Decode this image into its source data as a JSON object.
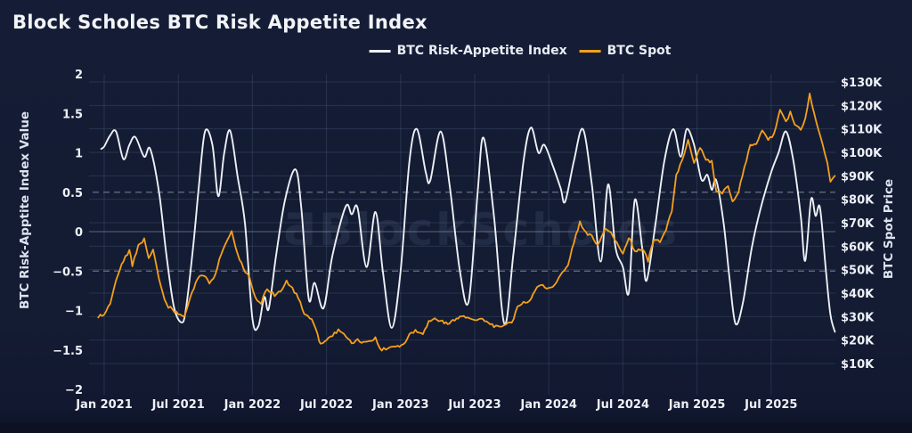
{
  "title": "Block Scholes BTC Risk Appetite Index",
  "watermark": {
    "logo": "Ƌ",
    "text": "BlockScholes"
  },
  "legend": [
    {
      "label": "BTC Risk-Appetite Index",
      "color": "#edf0f5"
    },
    {
      "label": "BTC Spot",
      "color": "#f5a01c"
    }
  ],
  "colors": {
    "background": "#141c33",
    "text": "#eef1f7",
    "grid": "rgba(110,130,170,0.22)",
    "dashed_reference": "rgba(172,180,194,0.55)",
    "zero_line": "rgba(150,160,180,0.45)",
    "index_line": "#edf0f5",
    "spot_line": "#f5a01c"
  },
  "chart_data": {
    "type": "line",
    "title": "Block Scholes BTC Risk Appetite Index",
    "legend_position": "top",
    "grid": true,
    "x_axis": {
      "ticks": [
        {
          "label": "Jan 2021",
          "year": 2021.0
        },
        {
          "label": "Jul 2021",
          "year": 2021.5
        },
        {
          "label": "Jan 2022",
          "year": 2022.0
        },
        {
          "label": "Jul 2022",
          "year": 2022.5
        },
        {
          "label": "Jan 2023",
          "year": 2023.0
        },
        {
          "label": "Jul 2023",
          "year": 2023.5
        },
        {
          "label": "Jan 2024",
          "year": 2024.0
        },
        {
          "label": "Jul 2024",
          "year": 2024.5
        },
        {
          "label": "Jan 2025",
          "year": 2025.0
        },
        {
          "label": "Jul 2025",
          "year": 2025.5
        }
      ],
      "range": [
        2020.9,
        2025.95
      ]
    },
    "left_axis": {
      "label": "BTC Risk-Apptite Index Value",
      "range": [
        -2,
        2
      ],
      "ticks": [
        {
          "label": "2",
          "value": 2
        },
        {
          "label": "1.5",
          "value": 1.5
        },
        {
          "label": "1",
          "value": 1
        },
        {
          "label": "0.5",
          "value": 0.5
        },
        {
          "label": "0",
          "value": 0
        },
        {
          "label": "−0.5",
          "value": -0.5
        },
        {
          "label": "−1",
          "value": -1
        },
        {
          "label": "−1.5",
          "value": -1.5
        },
        {
          "label": "−2",
          "value": -2
        }
      ],
      "reference_lines": {
        "dashed": [
          0.5,
          -0.5
        ],
        "solid": [
          0
        ]
      }
    },
    "right_axis": {
      "label": "BTC Spot Price",
      "unit": "USD thousands",
      "ticks": [
        {
          "label": "$130K",
          "value": 130
        },
        {
          "label": "$120K",
          "value": 120
        },
        {
          "label": "$110K",
          "value": 110
        },
        {
          "label": "$100K",
          "value": 100
        },
        {
          "label": "$90K",
          "value": 90
        },
        {
          "label": "$80K",
          "value": 80
        },
        {
          "label": "$70K",
          "value": 70
        },
        {
          "label": "$60K",
          "value": 60
        },
        {
          "label": "$50K",
          "value": 50
        },
        {
          "label": "$40K",
          "value": 40
        },
        {
          "label": "$30K",
          "value": 30
        },
        {
          "label": "$20K",
          "value": 20
        },
        {
          "label": "$10K",
          "value": 10
        }
      ]
    },
    "series": [
      {
        "name": "BTC Risk-Appetite Index",
        "axis": "left",
        "color": "#edf0f5",
        "style": "smooth",
        "points": [
          [
            2020.98,
            1.05
          ],
          [
            2021.0,
            1.08
          ],
          [
            2021.04,
            1.22
          ],
          [
            2021.08,
            1.27
          ],
          [
            2021.13,
            0.92
          ],
          [
            2021.17,
            1.1
          ],
          [
            2021.21,
            1.2
          ],
          [
            2021.27,
            0.95
          ],
          [
            2021.31,
            1.05
          ],
          [
            2021.37,
            0.5
          ],
          [
            2021.42,
            -0.3
          ],
          [
            2021.47,
            -0.95
          ],
          [
            2021.52,
            -1.15
          ],
          [
            2021.55,
            -1.0
          ],
          [
            2021.6,
            -0.2
          ],
          [
            2021.64,
            0.6
          ],
          [
            2021.68,
            1.27
          ],
          [
            2021.73,
            1.1
          ],
          [
            2021.77,
            0.45
          ],
          [
            2021.81,
            1.0
          ],
          [
            2021.85,
            1.28
          ],
          [
            2021.9,
            0.7
          ],
          [
            2021.95,
            0.1
          ],
          [
            2022.0,
            -1.1
          ],
          [
            2022.04,
            -1.2
          ],
          [
            2022.08,
            -0.83
          ],
          [
            2022.11,
            -0.98
          ],
          [
            2022.16,
            -0.3
          ],
          [
            2022.22,
            0.4
          ],
          [
            2022.29,
            0.79
          ],
          [
            2022.33,
            0.3
          ],
          [
            2022.38,
            -0.85
          ],
          [
            2022.42,
            -0.65
          ],
          [
            2022.48,
            -0.97
          ],
          [
            2022.54,
            -0.3
          ],
          [
            2022.63,
            0.32
          ],
          [
            2022.67,
            0.22
          ],
          [
            2022.71,
            0.3
          ],
          [
            2022.77,
            -0.45
          ],
          [
            2022.83,
            0.25
          ],
          [
            2022.88,
            -0.5
          ],
          [
            2022.94,
            -1.22
          ],
          [
            2023.0,
            -0.5
          ],
          [
            2023.06,
            0.9
          ],
          [
            2023.11,
            1.3
          ],
          [
            2023.17,
            0.75
          ],
          [
            2023.2,
            0.65
          ],
          [
            2023.27,
            1.27
          ],
          [
            2023.33,
            0.6
          ],
          [
            2023.4,
            -0.5
          ],
          [
            2023.46,
            -0.88
          ],
          [
            2023.52,
            0.5
          ],
          [
            2023.56,
            1.19
          ],
          [
            2023.63,
            0.2
          ],
          [
            2023.7,
            -1.17
          ],
          [
            2023.76,
            -0.3
          ],
          [
            2023.83,
            0.9
          ],
          [
            2023.88,
            1.32
          ],
          [
            2023.93,
            1.0
          ],
          [
            2023.97,
            1.1
          ],
          [
            2024.03,
            0.82
          ],
          [
            2024.08,
            0.55
          ],
          [
            2024.11,
            0.38
          ],
          [
            2024.17,
            0.9
          ],
          [
            2024.23,
            1.3
          ],
          [
            2024.29,
            0.6
          ],
          [
            2024.35,
            -0.38
          ],
          [
            2024.4,
            0.6
          ],
          [
            2024.45,
            -0.2
          ],
          [
            2024.5,
            -0.45
          ],
          [
            2024.54,
            -0.77
          ],
          [
            2024.58,
            0.4
          ],
          [
            2024.63,
            -0.2
          ],
          [
            2024.66,
            -0.62
          ],
          [
            2024.72,
            0.1
          ],
          [
            2024.78,
            0.9
          ],
          [
            2024.84,
            1.3
          ],
          [
            2024.89,
            0.95
          ],
          [
            2024.93,
            1.3
          ],
          [
            2024.98,
            1.1
          ],
          [
            2025.03,
            0.66
          ],
          [
            2025.07,
            0.72
          ],
          [
            2025.1,
            0.53
          ],
          [
            2025.13,
            0.65
          ],
          [
            2025.18,
            0.1
          ],
          [
            2025.22,
            -0.6
          ],
          [
            2025.26,
            -1.17
          ],
          [
            2025.31,
            -0.9
          ],
          [
            2025.37,
            -0.2
          ],
          [
            2025.43,
            0.3
          ],
          [
            2025.5,
            0.75
          ],
          [
            2025.55,
            1.0
          ],
          [
            2025.6,
            1.27
          ],
          [
            2025.65,
            0.9
          ],
          [
            2025.7,
            0.2
          ],
          [
            2025.73,
            -0.37
          ],
          [
            2025.77,
            0.41
          ],
          [
            2025.8,
            0.2
          ],
          [
            2025.83,
            0.3
          ],
          [
            2025.87,
            -0.5
          ],
          [
            2025.9,
            -1.05
          ],
          [
            2025.93,
            -1.27
          ]
        ]
      },
      {
        "name": "BTC Spot",
        "axis": "right",
        "color": "#f5a01c",
        "style": "noisy",
        "points": [
          [
            2020.96,
            30
          ],
          [
            2021.0,
            31
          ],
          [
            2021.04,
            36
          ],
          [
            2021.08,
            46
          ],
          [
            2021.13,
            54
          ],
          [
            2021.17,
            58
          ],
          [
            2021.19,
            52
          ],
          [
            2021.23,
            60
          ],
          [
            2021.27,
            63
          ],
          [
            2021.3,
            55
          ],
          [
            2021.33,
            58
          ],
          [
            2021.38,
            43
          ],
          [
            2021.42,
            35
          ],
          [
            2021.46,
            33
          ],
          [
            2021.5,
            31
          ],
          [
            2021.54,
            30
          ],
          [
            2021.58,
            38
          ],
          [
            2021.63,
            46
          ],
          [
            2021.67,
            48
          ],
          [
            2021.71,
            44
          ],
          [
            2021.75,
            48
          ],
          [
            2021.79,
            57
          ],
          [
            2021.83,
            63
          ],
          [
            2021.86,
            66
          ],
          [
            2021.9,
            57
          ],
          [
            2021.94,
            50
          ],
          [
            2021.98,
            47
          ],
          [
            2022.02,
            38
          ],
          [
            2022.06,
            36
          ],
          [
            2022.1,
            42
          ],
          [
            2022.15,
            39
          ],
          [
            2022.19,
            41
          ],
          [
            2022.23,
            45
          ],
          [
            2022.27,
            42
          ],
          [
            2022.31,
            38
          ],
          [
            2022.35,
            31
          ],
          [
            2022.4,
            29
          ],
          [
            2022.44,
            22
          ],
          [
            2022.46,
            18
          ],
          [
            2022.5,
            20
          ],
          [
            2022.54,
            22
          ],
          [
            2022.58,
            24
          ],
          [
            2022.63,
            22
          ],
          [
            2022.67,
            19
          ],
          [
            2022.71,
            20
          ],
          [
            2022.75,
            19
          ],
          [
            2022.79,
            19
          ],
          [
            2022.83,
            21
          ],
          [
            2022.86,
            16
          ],
          [
            2022.9,
            16
          ],
          [
            2022.94,
            17
          ],
          [
            2022.98,
            17
          ],
          [
            2023.02,
            18
          ],
          [
            2023.06,
            22
          ],
          [
            2023.1,
            24
          ],
          [
            2023.15,
            22
          ],
          [
            2023.19,
            28
          ],
          [
            2023.23,
            29
          ],
          [
            2023.27,
            28
          ],
          [
            2023.33,
            27
          ],
          [
            2023.4,
            30
          ],
          [
            2023.44,
            30
          ],
          [
            2023.48,
            29
          ],
          [
            2023.54,
            29
          ],
          [
            2023.58,
            28
          ],
          [
            2023.63,
            26
          ],
          [
            2023.67,
            26
          ],
          [
            2023.71,
            27
          ],
          [
            2023.75,
            27
          ],
          [
            2023.79,
            34
          ],
          [
            2023.83,
            36
          ],
          [
            2023.88,
            37
          ],
          [
            2023.92,
            43
          ],
          [
            2023.96,
            43
          ],
          [
            2024.0,
            42
          ],
          [
            2024.04,
            43
          ],
          [
            2024.08,
            48
          ],
          [
            2024.13,
            52
          ],
          [
            2024.17,
            62
          ],
          [
            2024.21,
            70
          ],
          [
            2024.25,
            66
          ],
          [
            2024.29,
            64
          ],
          [
            2024.33,
            60
          ],
          [
            2024.38,
            67
          ],
          [
            2024.42,
            66
          ],
          [
            2024.46,
            61
          ],
          [
            2024.5,
            57
          ],
          [
            2024.54,
            64
          ],
          [
            2024.58,
            58
          ],
          [
            2024.63,
            59
          ],
          [
            2024.67,
            54
          ],
          [
            2024.71,
            63
          ],
          [
            2024.75,
            62
          ],
          [
            2024.79,
            67
          ],
          [
            2024.83,
            75
          ],
          [
            2024.86,
            90
          ],
          [
            2024.9,
            97
          ],
          [
            2024.94,
            105
          ],
          [
            2024.98,
            95
          ],
          [
            2025.02,
            102
          ],
          [
            2025.06,
            97
          ],
          [
            2025.1,
            96
          ],
          [
            2025.13,
            84
          ],
          [
            2025.17,
            83
          ],
          [
            2025.21,
            85
          ],
          [
            2025.24,
            79
          ],
          [
            2025.28,
            83
          ],
          [
            2025.32,
            94
          ],
          [
            2025.36,
            103
          ],
          [
            2025.4,
            104
          ],
          [
            2025.44,
            109
          ],
          [
            2025.48,
            105
          ],
          [
            2025.52,
            108
          ],
          [
            2025.56,
            118
          ],
          [
            2025.6,
            113
          ],
          [
            2025.63,
            117
          ],
          [
            2025.66,
            112
          ],
          [
            2025.7,
            110
          ],
          [
            2025.73,
            114
          ],
          [
            2025.76,
            125
          ],
          [
            2025.79,
            117
          ],
          [
            2025.82,
            110
          ],
          [
            2025.85,
            103
          ],
          [
            2025.88,
            96
          ],
          [
            2025.9,
            88
          ],
          [
            2025.93,
            90
          ]
        ]
      }
    ]
  }
}
